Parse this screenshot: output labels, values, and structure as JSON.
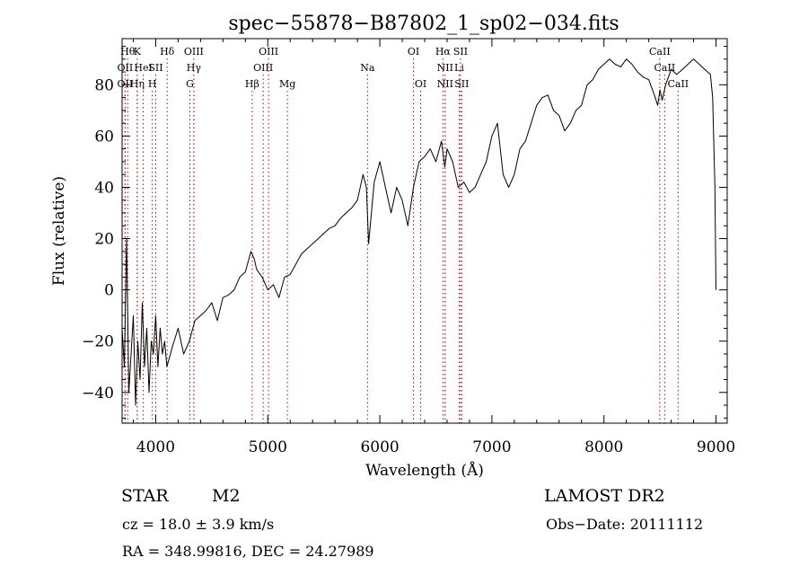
{
  "chart_data": {
    "type": "line",
    "title": "spec−55878−B87802_1_sp02−034.fits",
    "xlabel": "Wavelength (Å)",
    "ylabel": "Flux (relative)",
    "xlim": [
      3700,
      9100
    ],
    "ylim": [
      -52,
      98
    ],
    "x_ticks": [
      4000,
      5000,
      6000,
      7000,
      8000,
      9000
    ],
    "y_ticks": [
      -40,
      -20,
      0,
      20,
      40,
      60,
      80
    ],
    "y_tick_labels": [
      "−40",
      "−20",
      "0",
      "20",
      "40",
      "60",
      "80"
    ],
    "grid": false,
    "line_color": "#000000",
    "marker_line_color": "#cc0000",
    "series": [
      {
        "x": [
          3700,
          3720,
          3740,
          3760,
          3780,
          3800,
          3820,
          3840,
          3860,
          3880,
          3900,
          3920,
          3940,
          3960,
          3980,
          4000,
          4020,
          4040,
          4060,
          4080,
          4100,
          4150,
          4200,
          4250,
          4300,
          4350,
          4400,
          4450,
          4500,
          4550,
          4600,
          4650,
          4700,
          4750,
          4800,
          4850,
          4880,
          4900,
          4950,
          5000,
          5050,
          5100,
          5150,
          5200,
          5250,
          5300,
          5350,
          5400,
          5450,
          5500,
          5550,
          5600,
          5650,
          5700,
          5750,
          5800,
          5850,
          5880,
          5900,
          5950,
          6000,
          6050,
          6100,
          6150,
          6200,
          6250,
          6300,
          6350,
          6400,
          6450,
          6500,
          6550,
          6580,
          6600,
          6650,
          6700,
          6750,
          6800,
          6850,
          6900,
          6950,
          7000,
          7050,
          7100,
          7150,
          7200,
          7250,
          7300,
          7350,
          7400,
          7450,
          7500,
          7550,
          7600,
          7650,
          7700,
          7750,
          7800,
          7850,
          7900,
          7950,
          8000,
          8050,
          8100,
          8150,
          8200,
          8250,
          8300,
          8350,
          8400,
          8450,
          8480,
          8500,
          8520,
          8550,
          8600,
          8650,
          8700,
          8750,
          8800,
          8850,
          8900,
          8950,
          8970,
          8990,
          9000
        ],
        "y": [
          -15,
          -30,
          20,
          -40,
          -25,
          -10,
          -45,
          -20,
          -35,
          -5,
          -30,
          -15,
          -40,
          -20,
          -25,
          -10,
          -30,
          -15,
          -25,
          -20,
          -30,
          -22,
          -15,
          -25,
          -20,
          -12,
          -10,
          -8,
          -5,
          -12,
          -3,
          -2,
          0,
          5,
          7,
          15,
          12,
          8,
          5,
          0,
          2,
          -3,
          5,
          6,
          10,
          14,
          16,
          18,
          20,
          22,
          24,
          25,
          28,
          30,
          32,
          35,
          45,
          40,
          18,
          42,
          50,
          40,
          30,
          40,
          35,
          25,
          40,
          50,
          52,
          55,
          50,
          58,
          48,
          55,
          50,
          40,
          42,
          38,
          40,
          45,
          50,
          60,
          65,
          45,
          40,
          45,
          55,
          58,
          65,
          72,
          75,
          76,
          70,
          68,
          62,
          65,
          70,
          72,
          80,
          82,
          86,
          88,
          90,
          88,
          87,
          90,
          88,
          85,
          83,
          82,
          76,
          72,
          78,
          74,
          80,
          86,
          84,
          86,
          88,
          90,
          88,
          86,
          84,
          75,
          40,
          0
        ]
      }
    ],
    "line_markers": [
      {
        "x": 3750,
        "label": "Hθ",
        "row": 0
      },
      {
        "x": 3835,
        "label": "K",
        "row": 0
      },
      {
        "x": 4102,
        "label": "Hδ",
        "row": 0
      },
      {
        "x": 4340,
        "label": "OIII",
        "row": 0
      },
      {
        "x": 5007,
        "label": "OIII",
        "row": 0
      },
      {
        "x": 6300,
        "label": "OI",
        "row": 0
      },
      {
        "x": 6563,
        "label": "Hα",
        "row": 0
      },
      {
        "x": 6720,
        "label": "SII",
        "row": 0
      },
      {
        "x": 8498,
        "label": "CaII",
        "row": 0
      },
      {
        "x": 3727,
        "label": "OII",
        "row": 1
      },
      {
        "x": 3889,
        "label": "HeI",
        "row": 1
      },
      {
        "x": 4000,
        "label": "SII",
        "row": 1
      },
      {
        "x": 4340,
        "label": "Hγ",
        "row": 1
      },
      {
        "x": 4959,
        "label": "OIII",
        "row": 1
      },
      {
        "x": 5890,
        "label": "Na",
        "row": 1
      },
      {
        "x": 6583,
        "label": "NII",
        "row": 1
      },
      {
        "x": 6708,
        "label": "Li",
        "row": 1
      },
      {
        "x": 8542,
        "label": "CaII",
        "row": 1
      },
      {
        "x": 3727,
        "label": "OII",
        "row": 2
      },
      {
        "x": 3835,
        "label": "Hη",
        "row": 2
      },
      {
        "x": 3970,
        "label": "H",
        "row": 2
      },
      {
        "x": 4305,
        "label": "G",
        "row": 2
      },
      {
        "x": 4861,
        "label": "Hβ",
        "row": 2
      },
      {
        "x": 5175,
        "label": "Mg",
        "row": 2
      },
      {
        "x": 6364,
        "label": "OI",
        "row": 2
      },
      {
        "x": 6583,
        "label": "NII",
        "row": 2
      },
      {
        "x": 6731,
        "label": "SII",
        "row": 2
      },
      {
        "x": 8662,
        "label": "CaII",
        "row": 2
      }
    ]
  },
  "info": {
    "object_class": "STAR",
    "subclass": "M2",
    "survey": "LAMOST DR2",
    "redshift": "cz = 18.0 ± 3.9 km/s",
    "obs_date": "Obs−Date: 20111112",
    "coords": "RA = 348.99816, DEC =  24.27989"
  }
}
